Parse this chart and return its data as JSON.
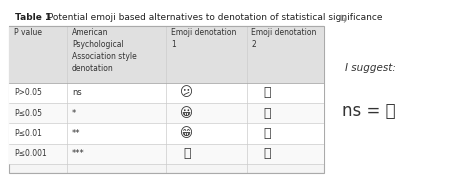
{
  "title": "Table 1",
  "title_rest": " Potential emoji based alternatives to denotation of statistical significance",
  "col_headers_0": "P value",
  "col_headers_1": "American\nPsychological\nAssociation style\ndenotation",
  "col_headers_2": "Emoji denotation\n1",
  "col_headers_3": "Emoji denotation\n2",
  "p_values": [
    "P>0.05",
    "P≤0.05",
    "P≤0.01",
    "P≤0.001"
  ],
  "apa_values": [
    "ns",
    "*",
    "**",
    "***"
  ],
  "suggest_label": "I suggest:",
  "background_color": "#ffffff",
  "header_bg": "#e0e0e0",
  "border_color": "#aaaaaa",
  "row_sep_color": "#cccccc",
  "text_color": "#333333",
  "title_color": "#222222"
}
